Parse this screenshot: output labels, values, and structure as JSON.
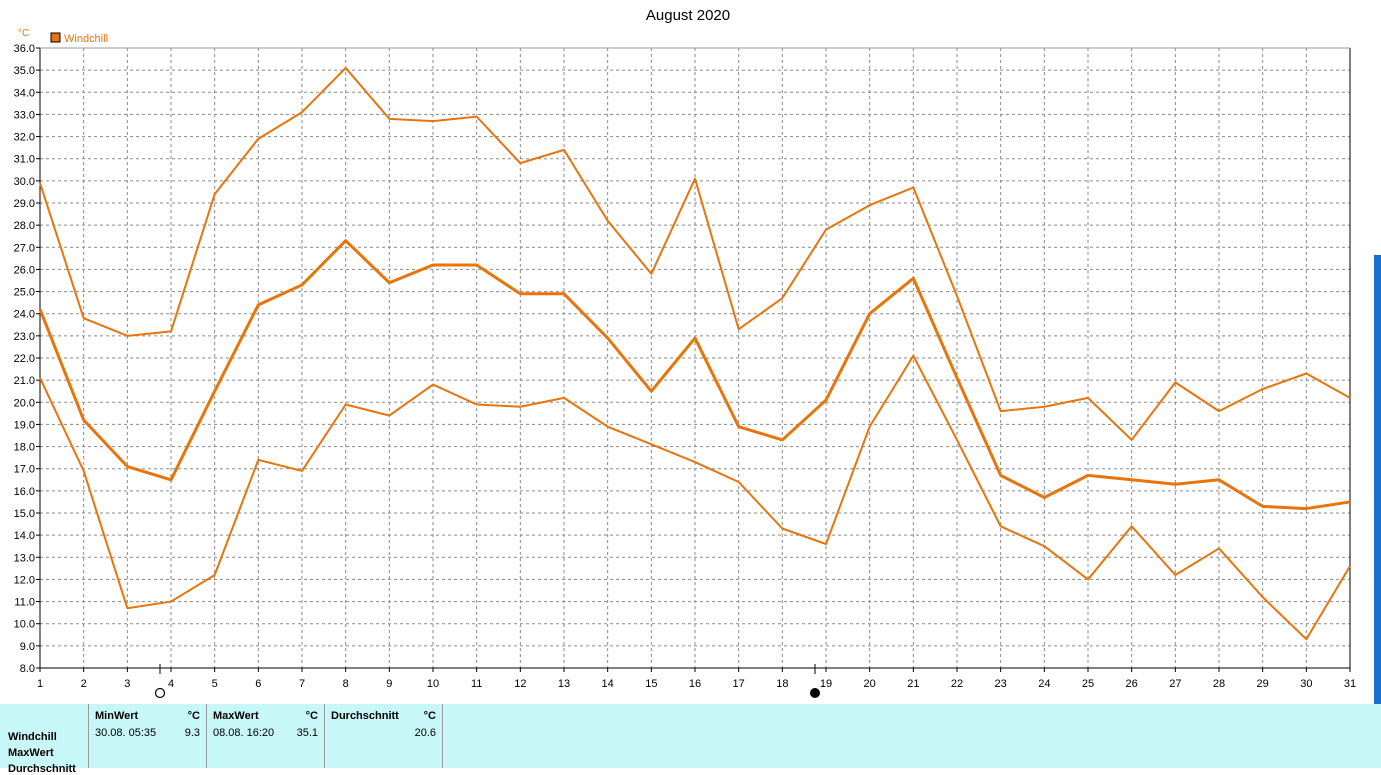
{
  "chart_data": {
    "type": "line",
    "title": "August 2020",
    "unit": "°C",
    "legend": [
      {
        "name": "Windchill",
        "color": "#e8740c"
      }
    ],
    "x": [
      1,
      2,
      3,
      4,
      5,
      6,
      7,
      8,
      9,
      10,
      11,
      12,
      13,
      14,
      15,
      16,
      17,
      18,
      19,
      20,
      21,
      22,
      23,
      24,
      25,
      26,
      27,
      28,
      29,
      30,
      31
    ],
    "ylim": [
      8.0,
      36.0
    ],
    "ytick_step": 1.0,
    "grid": true,
    "series": [
      {
        "values": [
          29.9,
          23.8,
          23.0,
          23.2,
          29.4,
          31.9,
          33.1,
          35.1,
          32.8,
          32.7,
          32.9,
          30.8,
          31.4,
          28.2,
          25.8,
          30.1,
          23.3,
          24.7,
          27.8,
          28.9,
          29.7,
          24.8,
          19.6,
          19.8,
          20.2,
          18.3,
          20.9,
          19.6,
          20.6,
          21.3,
          20.2
        ]
      },
      {
        "values": [
          24.2,
          19.2,
          17.1,
          16.5,
          20.5,
          24.4,
          25.3,
          27.3,
          25.4,
          26.2,
          26.2,
          24.9,
          24.9,
          22.9,
          20.5,
          22.9,
          18.9,
          18.3,
          20.1,
          24.0,
          25.6,
          21.1,
          16.7,
          15.7,
          16.7,
          16.5,
          16.3,
          16.5,
          15.3,
          15.2,
          15.5
        ]
      },
      {
        "values": [
          21.1,
          16.9,
          10.7,
          11.0,
          12.2,
          17.4,
          16.9,
          19.9,
          19.4,
          20.8,
          19.9,
          19.8,
          20.2,
          18.9,
          18.1,
          17.3,
          16.4,
          14.3,
          13.6,
          18.9,
          22.1,
          18.3,
          14.4,
          13.5,
          12.0,
          14.4,
          12.2,
          13.4,
          11.2,
          9.3,
          12.6
        ]
      }
    ],
    "moon_phases": [
      {
        "x": 4,
        "phase": "full-moon-icon"
      },
      {
        "x": 19,
        "phase": "new-moon-icon"
      }
    ],
    "color": "#e8740c"
  },
  "stats": {
    "rows": [
      "Windchill",
      "MaxWert",
      "Durchschnitt"
    ],
    "min": {
      "header": "MinWert",
      "unit": "°C",
      "datetime": "30.08.  05:35",
      "value": "9.3"
    },
    "max": {
      "header": "MaxWert",
      "unit": "°C",
      "datetime": "08.08.  16:20",
      "value": "35.1"
    },
    "avg": {
      "header": "Durchschnitt",
      "unit": "°C",
      "value": "20.6"
    }
  }
}
